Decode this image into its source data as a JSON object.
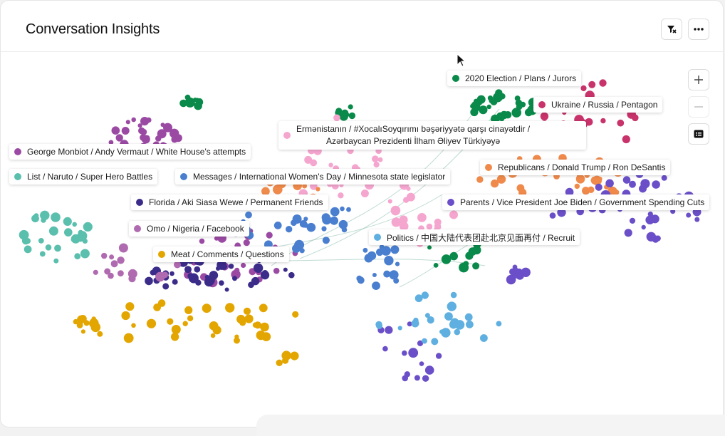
{
  "header": {
    "title": "Conversation Insights",
    "filter_icon": "filter-icon",
    "more_icon": "more-horizontal-icon"
  },
  "zoom": {
    "in_icon": "plus-icon",
    "out_icon": "minus-icon",
    "legend_icon": "legend-card-icon"
  },
  "labels": [
    {
      "text": "2020 Election / Plans / Jurors",
      "color": "#0a8a4a"
    },
    {
      "text": "Ukraine / Russia / Pentagon",
      "color": "#c8336b"
    },
    {
      "text": "Ermənistanın / #XocalıSoyqırımı bəşəriyyətə qarşı cinayətdir /",
      "text2": "Azərbaycan Prezidenti İlham Əliyev Türkiyəyə",
      "color": "#f5a6cf"
    },
    {
      "text": "George Monbiot / Andy Vermaut / White House's attempts",
      "color": "#9b4aa3"
    },
    {
      "text": "Republicans / Donald Trump / Ron DeSantis",
      "color": "#f08a4b"
    },
    {
      "text": "List / Naruto / Super Hero Battles",
      "color": "#5bbfae"
    },
    {
      "text": "Messages / International Women's Day / Minnesota state legislator",
      "color": "#4a7fd0"
    },
    {
      "text": "Parents / Vice President Joe Biden / Government Spending Cuts",
      "color": "#6a4fc9"
    },
    {
      "text": "Florida / Aki Siasa Wewe / Permanent Friends",
      "color": "#3b2c8a"
    },
    {
      "text": "Omo / Nigeria / Facebook",
      "color": "#b06bb0"
    },
    {
      "text": "Politics / 中国大陆代表团赴北京见面再付 / Recruit",
      "color": "#5fb0e0"
    },
    {
      "text": "Meat / Comments / Questions",
      "color": "#e3a600"
    }
  ]
}
